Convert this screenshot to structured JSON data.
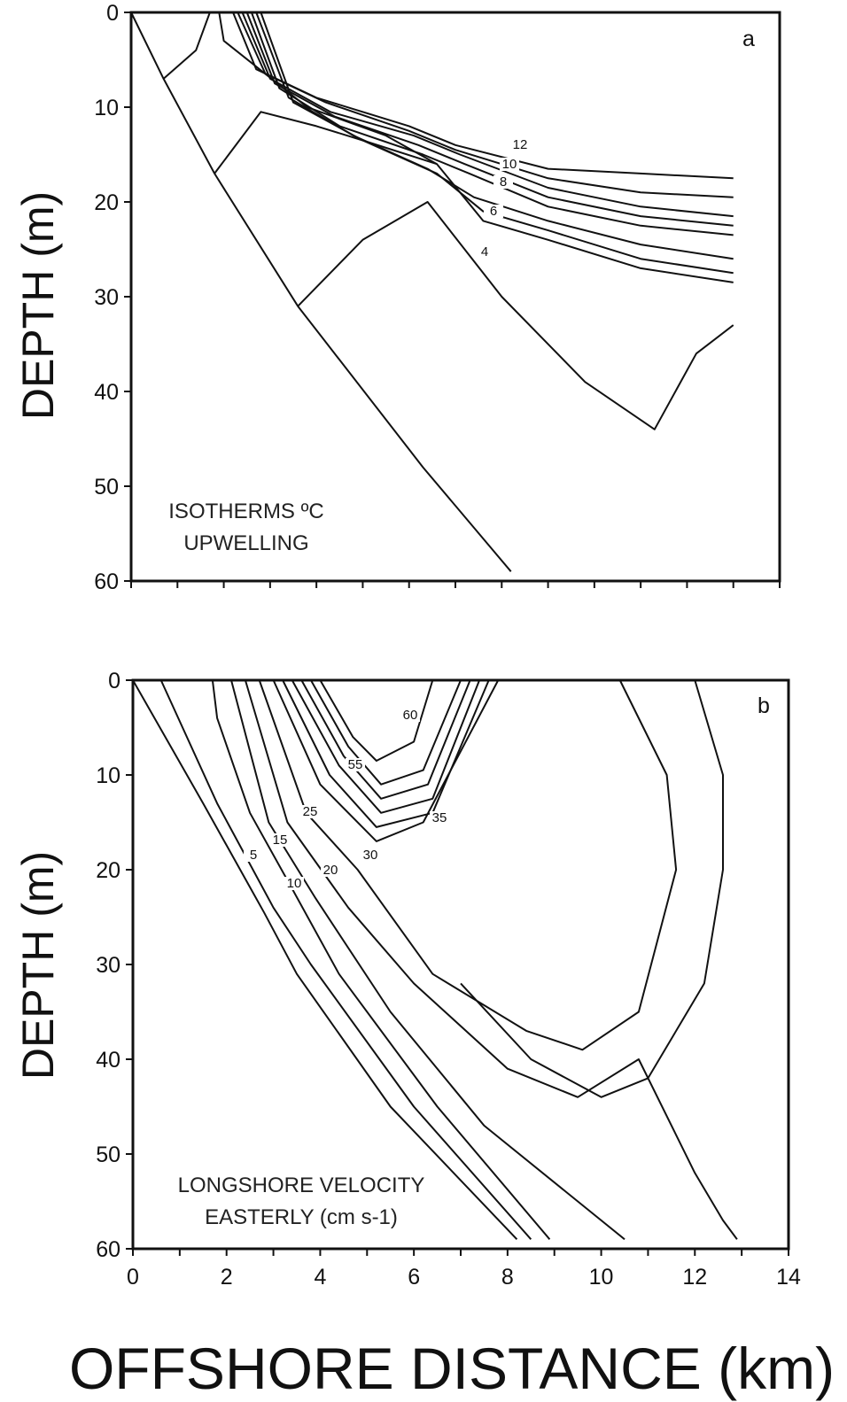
{
  "xlabel": "OFFSHORE DISTANCE (km)",
  "chart_data": [
    {
      "type": "contour",
      "panel_label": "a",
      "ylabel": "DEPTH (m)",
      "xlim": [
        0,
        14
      ],
      "ylim": [
        60,
        0
      ],
      "yticks": [
        "0",
        "10",
        "20",
        "30",
        "40",
        "50",
        "60"
      ],
      "annotation": [
        "ISOTHERMS ºC",
        "UPWELLING"
      ],
      "contour_labels": [
        "12",
        "10",
        "8",
        "6",
        "4"
      ],
      "bottom": [
        [
          0,
          0
        ],
        [
          0.7,
          7
        ],
        [
          1.8,
          17
        ],
        [
          3.6,
          31
        ],
        [
          6.3,
          48
        ],
        [
          8.2,
          59
        ]
      ],
      "contours": [
        {
          "label": "4",
          "points": [
            [
              1.8,
              17
            ],
            [
              2.8,
              10.5
            ],
            [
              4.0,
              12
            ],
            [
              5.0,
              13.5
            ],
            [
              6.6,
              16
            ]
          ]
        },
        {
          "label": "4",
          "points": [
            [
              3.6,
              31
            ],
            [
              5.0,
              24
            ],
            [
              6.4,
              20
            ],
            [
              8.0,
              30
            ],
            [
              9.8,
              39
            ],
            [
              11.3,
              44
            ],
            [
              12.2,
              36
            ],
            [
              13.0,
              33
            ]
          ]
        },
        {
          "label": "",
          "points": [
            [
              0.7,
              7
            ],
            [
              1.4,
              4
            ],
            [
              1.7,
              0
            ],
            [
              2.2,
              0
            ],
            [
              2.7,
              6
            ],
            [
              4.0,
              9
            ],
            [
              6.0,
              12
            ],
            [
              7.0,
              14
            ],
            [
              9.0,
              16.5
            ],
            [
              11.0,
              17
            ],
            [
              13.0,
              17.5
            ]
          ]
        },
        {
          "label": "",
          "points": [
            [
              2.3,
              0
            ],
            [
              2.9,
              6.5
            ],
            [
              4.2,
              9.5
            ],
            [
              6.0,
              12.5
            ],
            [
              7.0,
              14.5
            ],
            [
              9.0,
              17.5
            ],
            [
              11.0,
              19
            ],
            [
              13.0,
              19.5
            ]
          ]
        },
        {
          "label": "12",
          "points": [
            [
              2.4,
              0
            ],
            [
              3.0,
              7
            ],
            [
              4.3,
              10.5
            ],
            [
              6.1,
              13
            ],
            [
              7.1,
              15
            ],
            [
              9.0,
              18.5
            ],
            [
              11.0,
              20.5
            ],
            [
              13.0,
              21.5
            ]
          ]
        },
        {
          "label": "10",
          "points": [
            [
              2.5,
              0
            ],
            [
              3.1,
              7.5
            ],
            [
              4.4,
              11
            ],
            [
              6.2,
              14
            ],
            [
              7.2,
              16
            ],
            [
              9.0,
              19.5
            ],
            [
              11.0,
              21.5
            ],
            [
              13.0,
              22.5
            ]
          ]
        },
        {
          "label": "8",
          "points": [
            [
              2.6,
              0
            ],
            [
              3.2,
              8
            ],
            [
              4.5,
              12
            ],
            [
              6.3,
              15
            ],
            [
              7.3,
              17
            ],
            [
              9.0,
              20.5
            ],
            [
              11.0,
              22.5
            ],
            [
              13.0,
              23.5
            ]
          ]
        },
        {
          "label": "6",
          "points": [
            [
              2.7,
              0
            ],
            [
              3.4,
              9
            ],
            [
              4.8,
              13
            ],
            [
              6.4,
              16.5
            ],
            [
              7.4,
              19.5
            ],
            [
              9.0,
              22
            ],
            [
              11.0,
              24.5
            ],
            [
              13.0,
              26
            ]
          ]
        },
        {
          "label": "",
          "points": [
            [
              2.8,
              0
            ],
            [
              3.5,
              9.5
            ],
            [
              5.0,
              13.5
            ],
            [
              6.6,
              17
            ],
            [
              7.6,
              21
            ],
            [
              9.0,
              23
            ],
            [
              11.0,
              26
            ],
            [
              13.0,
              27.5
            ]
          ]
        },
        {
          "label": "",
          "points": [
            [
              1.9,
              0
            ],
            [
              2.0,
              3
            ],
            [
              3.8,
              10
            ],
            [
              5.5,
              13
            ],
            [
              6.6,
              16
            ],
            [
              7.6,
              22
            ],
            [
              9.0,
              24
            ],
            [
              11.0,
              27
            ],
            [
              13.0,
              28.5
            ]
          ]
        }
      ]
    },
    {
      "type": "contour",
      "panel_label": "b",
      "ylabel": "DEPTH (m)",
      "xlim": [
        0,
        14
      ],
      "ylim": [
        60,
        0
      ],
      "xticks": [
        "0",
        "2",
        "4",
        "6",
        "8",
        "10",
        "12",
        "14"
      ],
      "yticks": [
        "0",
        "10",
        "20",
        "30",
        "40",
        "50",
        "60"
      ],
      "annotation": [
        "LONGSHORE VELOCITY",
        "EASTERLY (cm s-1)"
      ],
      "contour_labels": [
        "60",
        "55",
        "35",
        "25",
        "30",
        "15",
        "20",
        "5",
        "10"
      ],
      "contours": [
        {
          "label": "5",
          "points": [
            [
              0,
              0
            ],
            [
              1.5,
              13
            ],
            [
              2.8,
              24.5
            ],
            [
              3.5,
              31
            ],
            [
              5.5,
              45
            ],
            [
              8.2,
              59
            ]
          ]
        },
        {
          "label": "10",
          "points": [
            [
              0.6,
              0
            ],
            [
              1.8,
              13
            ],
            [
              3.0,
              24
            ],
            [
              3.8,
              30
            ],
            [
              6.0,
              45
            ],
            [
              8.5,
              59
            ]
          ]
        },
        {
          "label": "15",
          "points": [
            [
              1.7,
              0
            ],
            [
              1.8,
              4
            ],
            [
              2.5,
              14
            ],
            [
              3.4,
              22
            ],
            [
              4.4,
              31
            ],
            [
              6.5,
              45
            ],
            [
              8.9,
              59
            ]
          ]
        },
        {
          "label": "20",
          "points": [
            [
              2.1,
              0
            ],
            [
              2.9,
              15
            ],
            [
              3.9,
              23
            ],
            [
              5.5,
              35
            ],
            [
              7.5,
              47
            ],
            [
              10.5,
              59
            ]
          ]
        },
        {
          "label": "25",
          "points": [
            [
              2.4,
              0
            ],
            [
              3.3,
              15
            ],
            [
              4.6,
              24
            ],
            [
              6.0,
              32
            ],
            [
              8.0,
              41
            ],
            [
              9.5,
              44
            ],
            [
              10.8,
              40
            ],
            [
              12.0,
              52
            ],
            [
              12.6,
              57
            ],
            [
              12.9,
              59
            ]
          ]
        },
        {
          "label": "30",
          "points": [
            [
              2.7,
              0
            ],
            [
              3.7,
              14
            ],
            [
              4.8,
              20
            ],
            [
              6.4,
              31
            ],
            [
              8.4,
              37
            ],
            [
              9.6,
              39
            ],
            [
              10.8,
              35
            ],
            [
              11.6,
              20
            ],
            [
              11.4,
              10
            ],
            [
              10.4,
              0
            ]
          ]
        },
        {
          "label": "35",
          "points": [
            [
              12.0,
              0
            ],
            [
              12.6,
              10
            ],
            [
              12.6,
              20
            ],
            [
              12.2,
              32
            ],
            [
              11.0,
              42
            ],
            [
              10.0,
              44
            ],
            [
              8.5,
              40
            ],
            [
              7.0,
              32
            ]
          ]
        },
        {
          "label": "",
          "points": [
            [
              3.0,
              0
            ],
            [
              4.0,
              11
            ],
            [
              5.2,
              17
            ],
            [
              6.2,
              15
            ],
            [
              7.8,
              0
            ]
          ]
        },
        {
          "label": "35",
          "points": [
            [
              3.2,
              0
            ],
            [
              4.2,
              10
            ],
            [
              5.2,
              15.5
            ],
            [
              6.4,
              14
            ],
            [
              7.6,
              0
            ]
          ]
        },
        {
          "label": "",
          "points": [
            [
              3.4,
              0
            ],
            [
              4.4,
              9
            ],
            [
              5.3,
              14
            ],
            [
              6.4,
              12.5
            ],
            [
              7.4,
              0
            ]
          ]
        },
        {
          "label": "",
          "points": [
            [
              3.6,
              0
            ],
            [
              4.5,
              8
            ],
            [
              5.3,
              12.5
            ],
            [
              6.3,
              11
            ],
            [
              7.2,
              0
            ]
          ]
        },
        {
          "label": "55",
          "points": [
            [
              3.8,
              0
            ],
            [
              4.6,
              7
            ],
            [
              5.3,
              11
            ],
            [
              6.2,
              9.5
            ],
            [
              7.0,
              0
            ]
          ]
        },
        {
          "label": "60",
          "points": [
            [
              4.0,
              0
            ],
            [
              4.7,
              6
            ],
            [
              5.2,
              8.5
            ],
            [
              6.0,
              6.5
            ],
            [
              6.4,
              0
            ]
          ]
        }
      ]
    }
  ]
}
